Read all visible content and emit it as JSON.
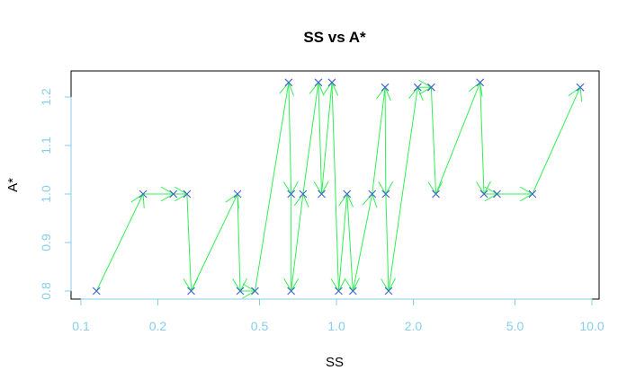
{
  "chart_data": {
    "type": "scatter",
    "title": "SS vs A*",
    "xlabel": "SS",
    "ylabel": "A*",
    "x_scale": "log",
    "xlim": [
      0.1,
      10.0
    ],
    "ylim": [
      0.78,
      1.25
    ],
    "x_ticks": [
      0.1,
      0.2,
      0.5,
      1.0,
      2.0,
      5.0,
      10.0
    ],
    "x_tick_labels": [
      "0.1",
      "0.2",
      "0.5",
      "1.0",
      "2.0",
      "5.0",
      "10.0"
    ],
    "y_ticks": [
      0.8,
      0.9,
      1.0,
      1.1,
      1.2
    ],
    "y_tick_labels": [
      "0.8",
      "0.9",
      "1.0",
      "1.1",
      "1.2"
    ],
    "grid": false,
    "colors": {
      "points": "#4466cc",
      "arrows": "#33ee55",
      "ticks": "#87ceeb",
      "axes": "#000000"
    },
    "series": [
      {
        "marker": "x",
        "connected_by": "arrows",
        "points": [
          [
            0.115,
            0.8
          ],
          [
            0.175,
            1.0
          ],
          [
            0.23,
            1.0
          ],
          [
            0.26,
            1.0
          ],
          [
            0.27,
            0.8
          ],
          [
            0.41,
            1.0
          ],
          [
            0.42,
            0.8
          ],
          [
            0.48,
            0.8
          ],
          [
            0.65,
            1.23
          ],
          [
            0.665,
            1.0
          ],
          [
            0.665,
            0.8
          ],
          [
            0.74,
            1.0
          ],
          [
            0.85,
            1.23
          ],
          [
            0.875,
            1.0
          ],
          [
            0.96,
            1.23
          ],
          [
            1.02,
            0.8
          ],
          [
            1.1,
            1.0
          ],
          [
            1.16,
            0.8
          ],
          [
            1.38,
            1.0
          ],
          [
            1.55,
            1.22
          ],
          [
            1.56,
            1.0
          ],
          [
            1.6,
            0.8
          ],
          [
            2.08,
            1.22
          ],
          [
            2.35,
            1.22
          ],
          [
            2.45,
            1.0
          ],
          [
            3.65,
            1.23
          ],
          [
            3.78,
            1.0
          ],
          [
            4.25,
            1.0
          ],
          [
            5.85,
            1.0
          ],
          [
            9.0,
            1.22
          ]
        ]
      }
    ]
  }
}
